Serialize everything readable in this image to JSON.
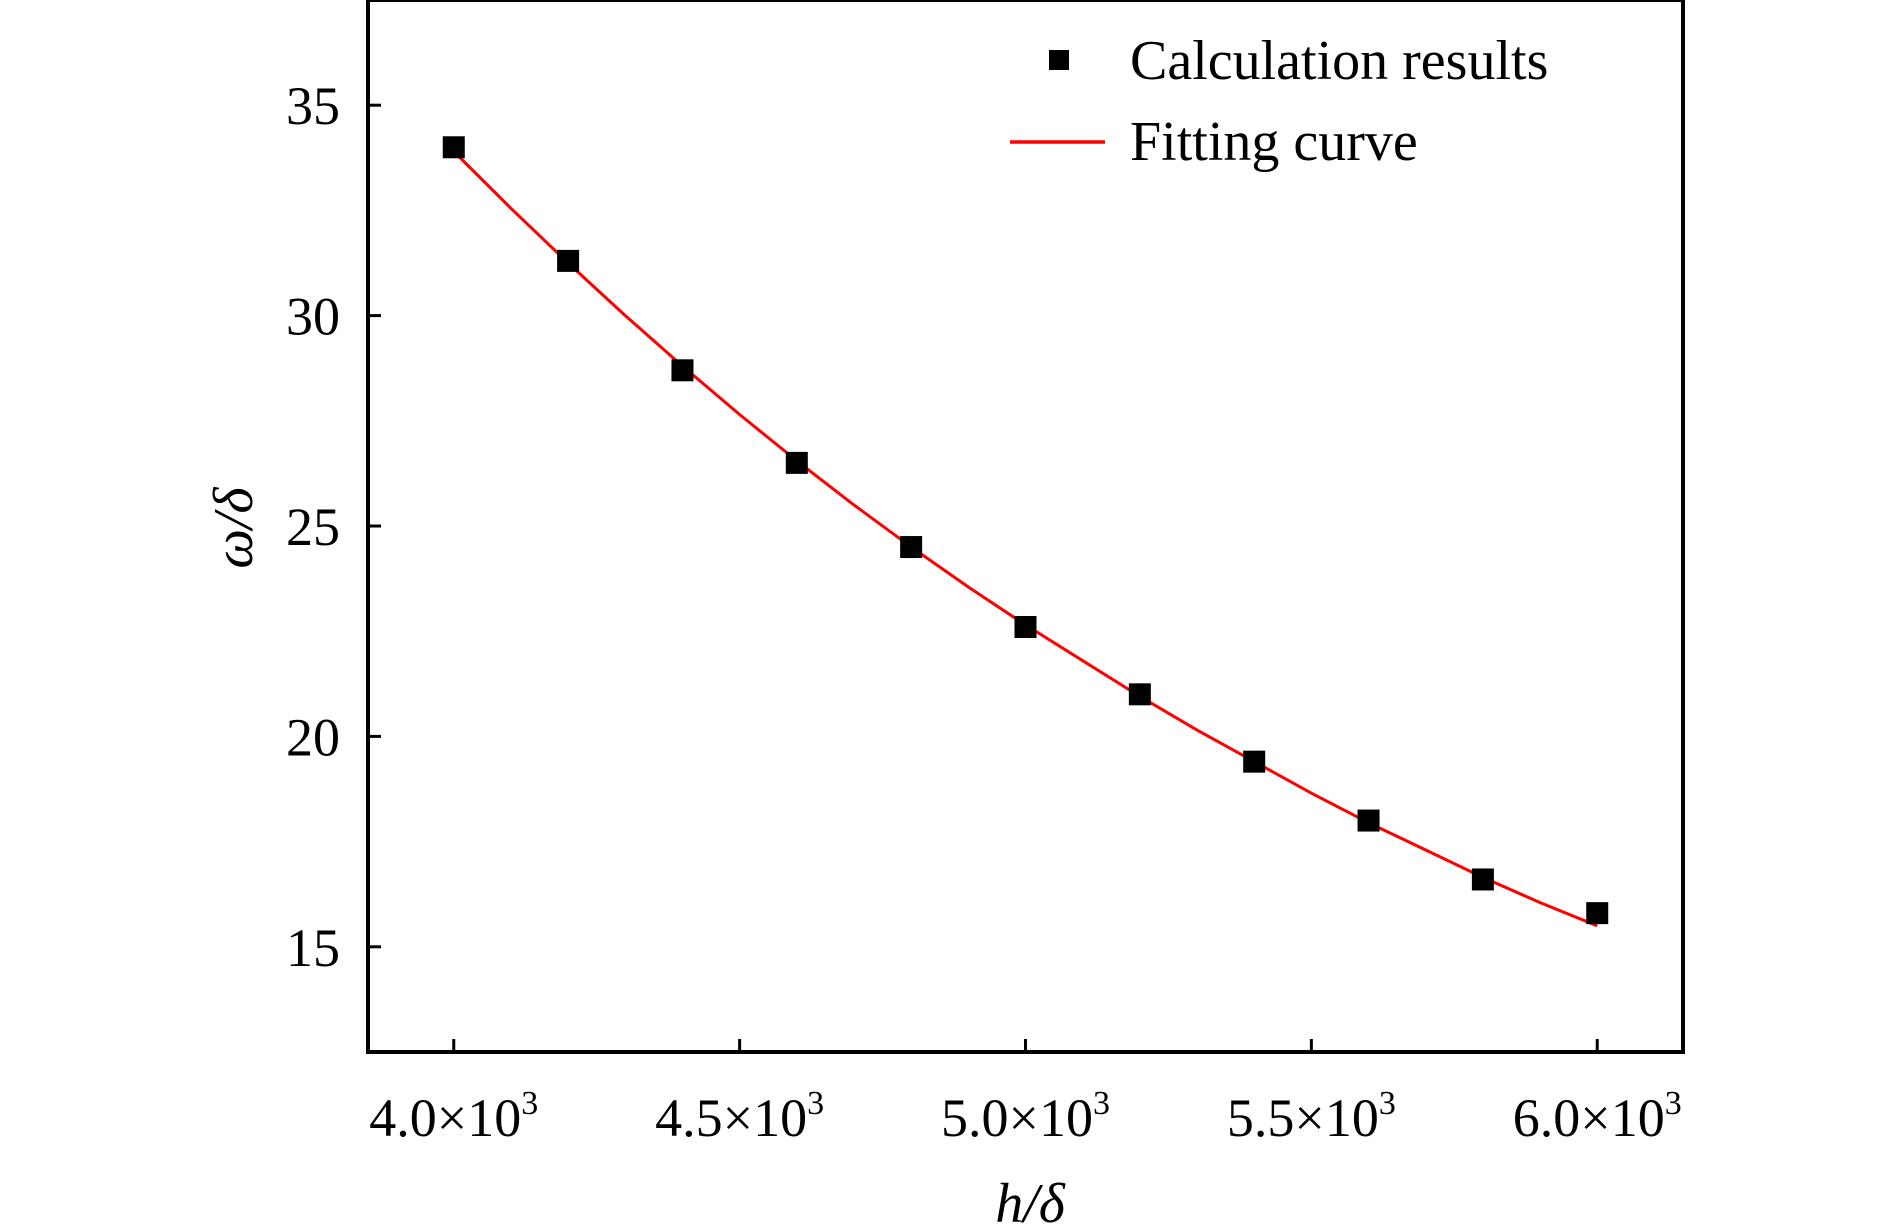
{
  "chart_data": {
    "type": "scatter",
    "title": "",
    "xlabel": "h/δ",
    "ylabel": "ω/δ",
    "xlim": [
      3850,
      6150
    ],
    "ylim": [
      12.5,
      37.5
    ],
    "xticks": [
      4000,
      4500,
      5000,
      5500,
      6000
    ],
    "xtick_labels": [
      {
        "mantissa": "4.0×10",
        "exp": "3"
      },
      {
        "mantissa": "4.5×10",
        "exp": "3"
      },
      {
        "mantissa": "5.0×10",
        "exp": "3"
      },
      {
        "mantissa": "5.5×10",
        "exp": "3"
      },
      {
        "mantissa": "6.0×10",
        "exp": "3"
      }
    ],
    "yticks": [
      15,
      20,
      25,
      30,
      35
    ],
    "ytick_labels": [
      "15",
      "20",
      "25",
      "30",
      "35"
    ],
    "grid": false,
    "legend_position": "top-right",
    "series": [
      {
        "name": "Calculation results",
        "kind": "scatter",
        "marker": "square",
        "color": "#000000",
        "x": [
          4000,
          4200,
          4400,
          4600,
          4800,
          5000,
          5200,
          5400,
          5600,
          5800,
          6000
        ],
        "y": [
          34.0,
          31.3,
          28.7,
          26.5,
          24.5,
          22.6,
          21.0,
          19.4,
          18.0,
          16.6,
          15.8
        ]
      },
      {
        "name": "Fitting curve",
        "kind": "line",
        "color": "#ff0000",
        "x": [
          4000,
          4100,
          4200,
          4300,
          4400,
          4500,
          4600,
          4700,
          4800,
          4900,
          5000,
          5100,
          5200,
          5300,
          5400,
          5500,
          5600,
          5700,
          5800,
          5900,
          6000
        ],
        "y": [
          33.9,
          32.55,
          31.25,
          30.0,
          28.8,
          27.65,
          26.55,
          25.5,
          24.5,
          23.55,
          22.65,
          21.8,
          20.95,
          20.15,
          19.4,
          18.65,
          17.95,
          17.3,
          16.65,
          16.05,
          15.5
        ]
      }
    ]
  }
}
